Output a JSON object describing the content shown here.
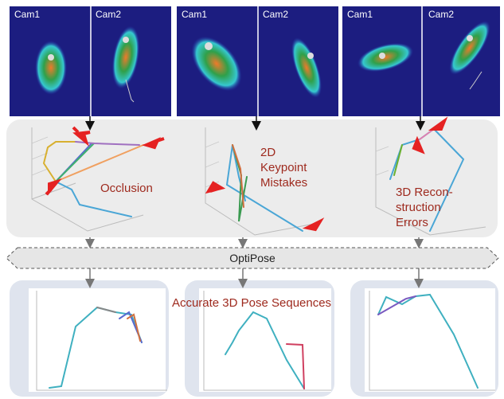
{
  "panels": [
    {
      "cameras": [
        "Cam1",
        "Cam2"
      ],
      "error_label": [
        "Occlusion"
      ]
    },
    {
      "cameras": [
        "Cam1",
        "Cam2"
      ],
      "error_label": [
        "2D",
        "Keypoint",
        "Mistakes"
      ]
    },
    {
      "cameras": [
        "Cam1",
        "Cam2"
      ],
      "error_label": [
        "3D Recon-",
        "struction",
        "Errors"
      ]
    }
  ],
  "module": "OptiPose",
  "result_label": "Accurate 3D Pose Sequences"
}
